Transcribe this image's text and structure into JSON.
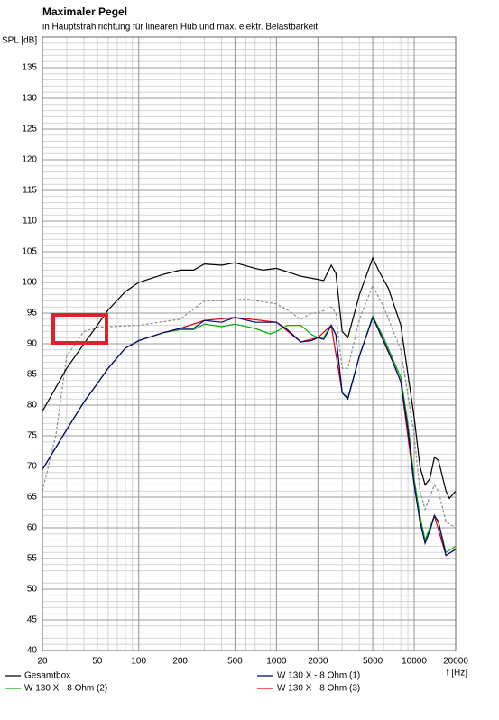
{
  "chart_data": {
    "type": "line",
    "title": "Maximaler Pegel",
    "subtitle": "in Hauptstrahlrichtung für linearen Hub und max. elektr. Belastbarkeit",
    "y_label": "SPL [dB]",
    "x_label": "f [Hz]",
    "xlog": true,
    "grid": true,
    "minor_grid": true,
    "yminor_step": 1,
    "xlim": [
      20,
      20000
    ],
    "ylim": [
      40,
      140
    ],
    "xticks": [
      20,
      50,
      100,
      200,
      500,
      1000,
      2000,
      5000,
      10000,
      20000
    ],
    "yticks": [
      40,
      45,
      50,
      55,
      60,
      65,
      70,
      75,
      80,
      85,
      90,
      95,
      100,
      105,
      110,
      115,
      120,
      125,
      130,
      135
    ],
    "series": [
      {
        "name": "Gesamtbox",
        "color": "#000000",
        "x": [
          20,
          30,
          40,
          50,
          60,
          80,
          100,
          150,
          200,
          250,
          300,
          400,
          500,
          700,
          800,
          1000,
          1500,
          2000,
          2200,
          2500,
          2700,
          3000,
          3300,
          4000,
          5000,
          5500,
          6500,
          8000,
          9000,
          10000,
          11000,
          12000,
          13000,
          14000,
          15000,
          17000,
          18000,
          20000
        ],
        "values": [
          79,
          86,
          90,
          93,
          95.5,
          98.5,
          100,
          101.3,
          102,
          102,
          103,
          102.8,
          103.2,
          102.3,
          102,
          102.3,
          101,
          100.5,
          100.3,
          102.8,
          101.5,
          92,
          91,
          98,
          104,
          102,
          99,
          93,
          85,
          78,
          70,
          67,
          68,
          71.5,
          71,
          66,
          64.8,
          66
        ]
      },
      {
        "name": "W 130 X - 8 Ohm (1)",
        "color": "#00007f",
        "x": [
          20,
          30,
          40,
          50,
          60,
          80,
          100,
          150,
          200,
          250,
          300,
          400,
          500,
          700,
          1000,
          1200,
          1500,
          1800,
          2000,
          2200,
          2500,
          2700,
          3000,
          3300,
          4000,
          5000,
          6000,
          7000,
          8000,
          9000,
          10000,
          11000,
          12000,
          13000,
          14000,
          15000,
          17000,
          20000
        ],
        "values": [
          69.5,
          76,
          80.5,
          83.5,
          86,
          89.3,
          90.5,
          91.8,
          92.5,
          92.5,
          93.8,
          93.5,
          94.3,
          93.5,
          93.5,
          92.3,
          90.3,
          90.5,
          91,
          90.7,
          93,
          91.5,
          82,
          81,
          88,
          94.3,
          90.5,
          87,
          83.8,
          76,
          67,
          61,
          57.5,
          59.5,
          62,
          61,
          55.5,
          56.5
        ]
      },
      {
        "name": "W 130 X - 8 Ohm (2)",
        "color": "#00b000",
        "x": [
          20,
          30,
          40,
          50,
          60,
          80,
          100,
          150,
          200,
          250,
          300,
          400,
          500,
          700,
          900,
          1000,
          1200,
          1500,
          1800,
          2000,
          2200,
          2500,
          2700,
          3000,
          3300,
          4000,
          5000,
          6000,
          7000,
          8000,
          9000,
          10000,
          11000,
          12000,
          13000,
          14000,
          15000,
          17000,
          20000
        ],
        "values": [
          69.5,
          76,
          80.5,
          83.5,
          86,
          89.3,
          90.5,
          91.8,
          92.3,
          92.3,
          93.2,
          92.8,
          93.2,
          92.5,
          91.6,
          92,
          93,
          93,
          91.5,
          91,
          91,
          93,
          91.5,
          82,
          81.2,
          88,
          94.5,
          91,
          87.5,
          84.5,
          77,
          68,
          62,
          58,
          60,
          62,
          61,
          56,
          57
        ]
      },
      {
        "name": "W 130 X - 8 Ohm (3)",
        "color": "#e00000",
        "x": [
          20,
          30,
          40,
          50,
          60,
          80,
          100,
          150,
          200,
          300,
          500,
          1000,
          1500,
          2000,
          2500,
          3000,
          3300,
          4000,
          5000,
          7000,
          8000,
          10000,
          12000,
          14000,
          17000,
          20000
        ],
        "values": [
          69.5,
          76,
          80.5,
          83.5,
          86,
          89.3,
          90.5,
          91.8,
          92.5,
          93.8,
          94.3,
          93.5,
          90.3,
          91,
          93,
          82,
          81,
          88,
          94.3,
          87,
          83.8,
          67,
          57.5,
          62,
          55.5,
          56.5
        ]
      },
      {
        "color": "#8c8c8c",
        "dashed": true,
        "x": [
          20,
          25,
          30,
          40,
          50,
          100,
          200,
          300,
          400,
          600,
          1000,
          1200,
          1500,
          1800,
          2000,
          2500,
          2700,
          3000,
          3300,
          4000,
          5000,
          6000,
          8000,
          10000,
          11000,
          12000,
          14000,
          15000,
          17000,
          20000
        ],
        "values": [
          66,
          75,
          88,
          92,
          92.7,
          93,
          94,
          97,
          97,
          97.3,
          96.5,
          95.5,
          94,
          95,
          95,
          96,
          95,
          86,
          86,
          94,
          99.5,
          96,
          89,
          75,
          66,
          63,
          67,
          66,
          61,
          60
        ]
      }
    ]
  }
}
